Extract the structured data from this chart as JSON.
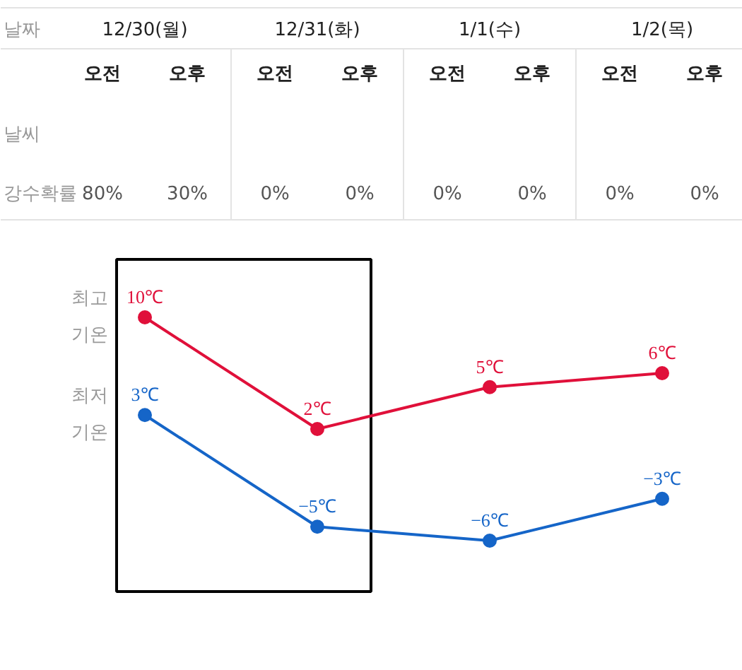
{
  "chart_data": {
    "type": "line",
    "categories": [
      "12/30(월)",
      "12/31(화)",
      "1/1(수)",
      "1/2(목)"
    ],
    "series": [
      {
        "name": "최고 기온",
        "color": "#e0103a",
        "values": [
          10,
          2,
          5,
          6
        ],
        "value_labels": [
          "10℃",
          "2℃",
          "5℃",
          "6℃"
        ]
      },
      {
        "name": "최저 기온",
        "color": "#1565c8",
        "values": [
          3,
          -5,
          -6,
          -3
        ],
        "value_labels": [
          "3℃",
          "−5℃",
          "−6℃",
          "−3℃"
        ]
      }
    ],
    "marker": "circle",
    "line_style": "solid",
    "annotations": [
      "날짜",
      "날씨",
      "강수확률",
      "오전",
      "오후",
      "오전",
      "오후",
      "오전",
      "오후",
      "오전",
      "오후",
      "80%",
      "30%",
      "0%",
      "0%",
      "0%",
      "0%",
      "0%",
      "0%"
    ]
  }
}
